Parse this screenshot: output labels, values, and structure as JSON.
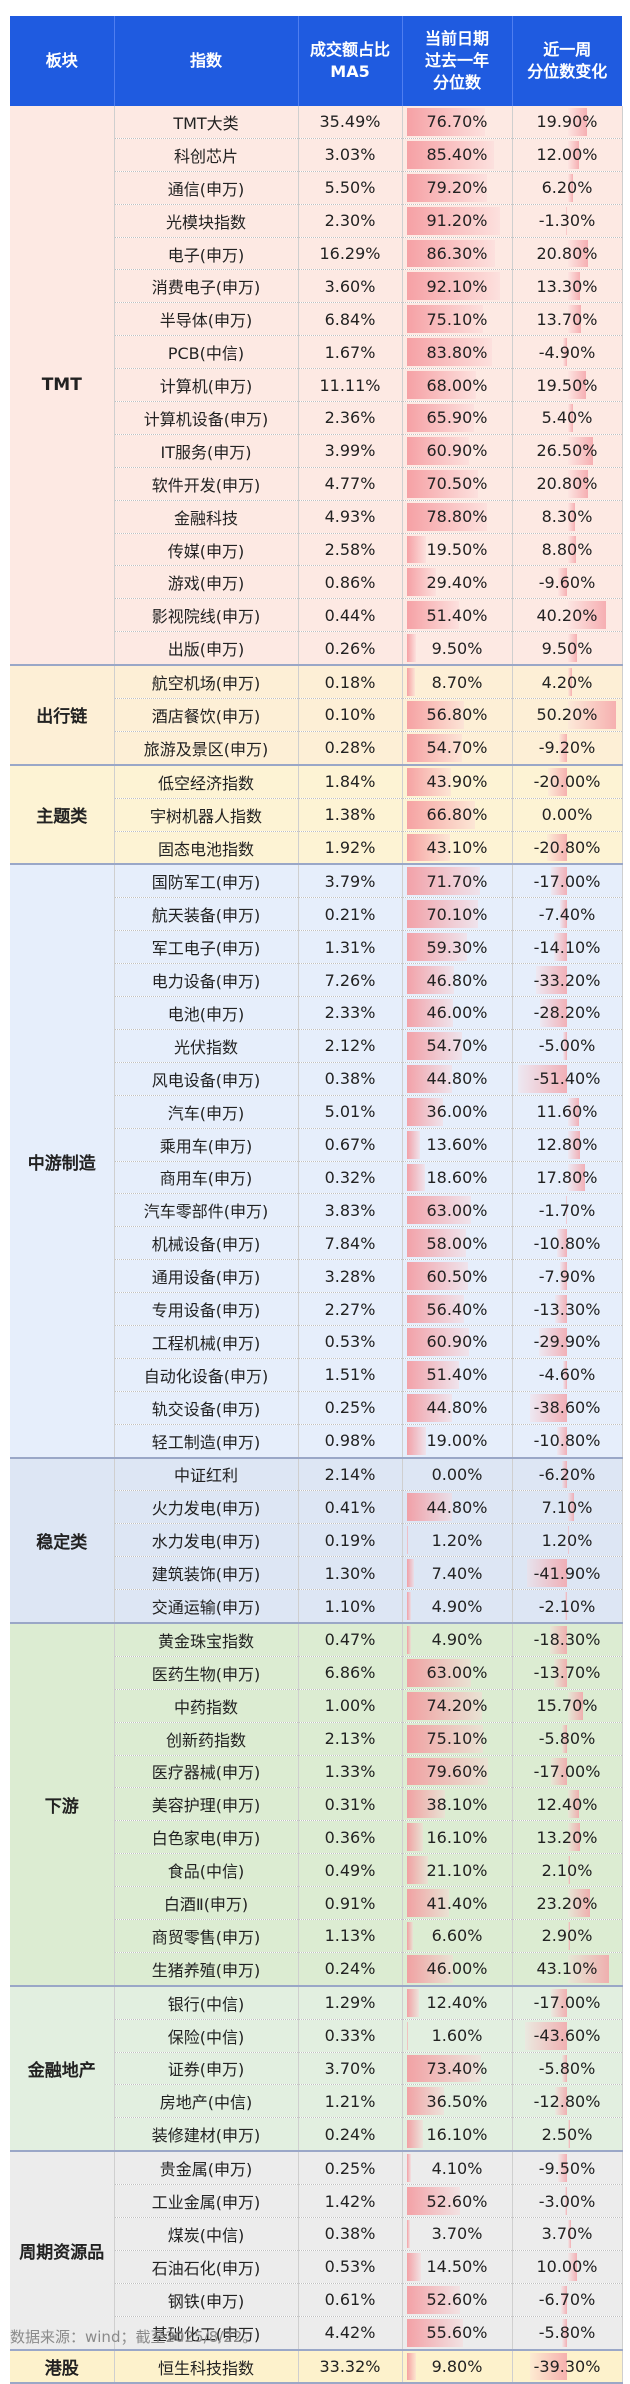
{
  "header": {
    "col_sector": "板块",
    "col_index": "指数",
    "col_turnover": "成交额占比\nMA5",
    "col_pct": "当前日期\n过去一年\n分位数",
    "col_change": "近一周\n分位数变化"
  },
  "groups": [
    {
      "sector": "TMT",
      "color": "#fde9e3",
      "rows": [
        {
          "index": "TMT大类",
          "turnover": "35.49%",
          "pct": "76.70%",
          "change": "19.90%",
          "pct_value": 76.7,
          "change_value": 19.9
        },
        {
          "index": "科创芯片",
          "turnover": "3.03%",
          "pct": "85.40%",
          "change": "12.00%",
          "pct_value": 85.4,
          "change_value": 12.0
        },
        {
          "index": "通信(申万)",
          "turnover": "5.50%",
          "pct": "79.20%",
          "change": "6.20%",
          "pct_value": 79.2,
          "change_value": 6.2
        },
        {
          "index": "光模块指数",
          "turnover": "2.30%",
          "pct": "91.20%",
          "change": "-1.30%",
          "pct_value": 91.2,
          "change_value": -1.3
        },
        {
          "index": "电子(申万)",
          "turnover": "16.29%",
          "pct": "86.30%",
          "change": "20.80%",
          "pct_value": 86.3,
          "change_value": 20.8
        },
        {
          "index": "消费电子(申万)",
          "turnover": "3.60%",
          "pct": "92.10%",
          "change": "13.30%",
          "pct_value": 92.1,
          "change_value": 13.3
        },
        {
          "index": "半导体(申万)",
          "turnover": "6.84%",
          "pct": "75.10%",
          "change": "13.70%",
          "pct_value": 75.1,
          "change_value": 13.7
        },
        {
          "index": "PCB(中信)",
          "turnover": "1.67%",
          "pct": "83.80%",
          "change": "-4.90%",
          "pct_value": 83.8,
          "change_value": -4.9
        },
        {
          "index": "计算机(申万)",
          "turnover": "11.11%",
          "pct": "68.00%",
          "change": "19.50%",
          "pct_value": 68.0,
          "change_value": 19.5
        },
        {
          "index": "计算机设备(申万)",
          "turnover": "2.36%",
          "pct": "65.90%",
          "change": "5.40%",
          "pct_value": 65.9,
          "change_value": 5.4
        },
        {
          "index": "IT服务(申万)",
          "turnover": "3.99%",
          "pct": "60.90%",
          "change": "26.50%",
          "pct_value": 60.9,
          "change_value": 26.5
        },
        {
          "index": "软件开发(申万)",
          "turnover": "4.77%",
          "pct": "70.50%",
          "change": "20.80%",
          "pct_value": 70.5,
          "change_value": 20.8
        },
        {
          "index": "金融科技",
          "turnover": "4.93%",
          "pct": "78.80%",
          "change": "8.30%",
          "pct_value": 78.8,
          "change_value": 8.3
        },
        {
          "index": "传媒(申万)",
          "turnover": "2.58%",
          "pct": "19.50%",
          "change": "8.80%",
          "pct_value": 19.5,
          "change_value": 8.8
        },
        {
          "index": "游戏(申万)",
          "turnover": "0.86%",
          "pct": "29.40%",
          "change": "-9.60%",
          "pct_value": 29.4,
          "change_value": -9.6
        },
        {
          "index": "影视院线(申万)",
          "turnover": "0.44%",
          "pct": "51.40%",
          "change": "40.20%",
          "pct_value": 51.4,
          "change_value": 40.2
        },
        {
          "index": "出版(申万)",
          "turnover": "0.26%",
          "pct": "9.50%",
          "change": "9.50%",
          "pct_value": 9.5,
          "change_value": 9.5
        }
      ]
    },
    {
      "sector": "出行链",
      "color": "#fdefd6",
      "rows": [
        {
          "index": "航空机场(申万)",
          "turnover": "0.18%",
          "pct": "8.70%",
          "change": "4.20%",
          "pct_value": 8.7,
          "change_value": 4.2
        },
        {
          "index": "酒店餐饮(申万)",
          "turnover": "0.10%",
          "pct": "56.80%",
          "change": "50.20%",
          "pct_value": 56.8,
          "change_value": 50.2
        },
        {
          "index": "旅游及景区(申万)",
          "turnover": "0.28%",
          "pct": "54.70%",
          "change": "-9.20%",
          "pct_value": 54.7,
          "change_value": -9.2
        }
      ]
    },
    {
      "sector": "主题类",
      "color": "#fdf3d4",
      "rows": [
        {
          "index": "低空经济指数",
          "turnover": "1.84%",
          "pct": "43.90%",
          "change": "-20.00%",
          "pct_value": 43.9,
          "change_value": -20.0
        },
        {
          "index": "宇树机器人指数",
          "turnover": "1.38%",
          "pct": "66.80%",
          "change": "0.00%",
          "pct_value": 66.8,
          "change_value": 0.0
        },
        {
          "index": "固态电池指数",
          "turnover": "1.92%",
          "pct": "43.10%",
          "change": "-20.80%",
          "pct_value": 43.1,
          "change_value": -20.8
        }
      ]
    },
    {
      "sector": "中游制造",
      "color": "#e6eefb",
      "rows": [
        {
          "index": "国防军工(申万)",
          "turnover": "3.79%",
          "pct": "71.70%",
          "change": "-17.00%",
          "pct_value": 71.7,
          "change_value": -17.0
        },
        {
          "index": "航天装备(申万)",
          "turnover": "0.21%",
          "pct": "70.10%",
          "change": "-7.40%",
          "pct_value": 70.1,
          "change_value": -7.4
        },
        {
          "index": "军工电子(申万)",
          "turnover": "1.31%",
          "pct": "59.30%",
          "change": "-14.10%",
          "pct_value": 59.3,
          "change_value": -14.1
        },
        {
          "index": "电力设备(申万)",
          "turnover": "7.26%",
          "pct": "46.80%",
          "change": "-33.20%",
          "pct_value": 46.8,
          "change_value": -33.2
        },
        {
          "index": "电池(申万)",
          "turnover": "2.33%",
          "pct": "46.00%",
          "change": "-28.20%",
          "pct_value": 46.0,
          "change_value": -28.2
        },
        {
          "index": "光伏指数",
          "turnover": "2.12%",
          "pct": "54.70%",
          "change": "-5.00%",
          "pct_value": 54.7,
          "change_value": -5.0
        },
        {
          "index": "风电设备(申万)",
          "turnover": "0.38%",
          "pct": "44.80%",
          "change": "-51.40%",
          "pct_value": 44.8,
          "change_value": -51.4
        },
        {
          "index": "汽车(申万)",
          "turnover": "5.01%",
          "pct": "36.00%",
          "change": "11.60%",
          "pct_value": 36.0,
          "change_value": 11.6
        },
        {
          "index": "乘用车(申万)",
          "turnover": "0.67%",
          "pct": "13.60%",
          "change": "12.80%",
          "pct_value": 13.6,
          "change_value": 12.8
        },
        {
          "index": "商用车(申万)",
          "turnover": "0.32%",
          "pct": "18.60%",
          "change": "17.80%",
          "pct_value": 18.6,
          "change_value": 17.8
        },
        {
          "index": "汽车零部件(申万)",
          "turnover": "3.83%",
          "pct": "63.00%",
          "change": "-1.70%",
          "pct_value": 63.0,
          "change_value": -1.7
        },
        {
          "index": "机械设备(申万)",
          "turnover": "7.84%",
          "pct": "58.00%",
          "change": "-10.80%",
          "pct_value": 58.0,
          "change_value": -10.8
        },
        {
          "index": "通用设备(申万)",
          "turnover": "3.28%",
          "pct": "60.50%",
          "change": "-7.90%",
          "pct_value": 60.5,
          "change_value": -7.9
        },
        {
          "index": "专用设备(申万)",
          "turnover": "2.27%",
          "pct": "56.40%",
          "change": "-13.30%",
          "pct_value": 56.4,
          "change_value": -13.3
        },
        {
          "index": "工程机械(申万)",
          "turnover": "0.53%",
          "pct": "60.90%",
          "change": "-29.90%",
          "pct_value": 60.9,
          "change_value": -29.9
        },
        {
          "index": "自动化设备(申万)",
          "turnover": "1.51%",
          "pct": "51.40%",
          "change": "-4.60%",
          "pct_value": 51.4,
          "change_value": -4.6
        },
        {
          "index": "轨交设备(申万)",
          "turnover": "0.25%",
          "pct": "44.80%",
          "change": "-38.60%",
          "pct_value": 44.8,
          "change_value": -38.6
        },
        {
          "index": "轻工制造(申万)",
          "turnover": "0.98%",
          "pct": "19.00%",
          "change": "-10.80%",
          "pct_value": 19.0,
          "change_value": -10.8
        }
      ]
    },
    {
      "sector": "稳定类",
      "color": "#dde6f4",
      "rows": [
        {
          "index": "中证红利",
          "turnover": "2.14%",
          "pct": "0.00%",
          "change": "-6.20%",
          "pct_value": 0.0,
          "change_value": -6.2
        },
        {
          "index": "火力发电(申万)",
          "turnover": "0.41%",
          "pct": "44.80%",
          "change": "7.10%",
          "pct_value": 44.8,
          "change_value": 7.1
        },
        {
          "index": "水力发电(申万)",
          "turnover": "0.19%",
          "pct": "1.20%",
          "change": "1.20%",
          "pct_value": 1.2,
          "change_value": 1.2
        },
        {
          "index": "建筑装饰(申万)",
          "turnover": "1.30%",
          "pct": "7.40%",
          "change": "-41.90%",
          "pct_value": 7.4,
          "change_value": -41.9
        },
        {
          "index": "交通运输(申万)",
          "turnover": "1.10%",
          "pct": "4.90%",
          "change": "-2.10%",
          "pct_value": 4.9,
          "change_value": -2.1
        }
      ]
    },
    {
      "sector": "下游",
      "color": "#dcecd2",
      "rows": [
        {
          "index": "黄金珠宝指数",
          "turnover": "0.47%",
          "pct": "4.90%",
          "change": "-18.30%",
          "pct_value": 4.9,
          "change_value": -18.3
        },
        {
          "index": "医药生物(申万)",
          "turnover": "6.86%",
          "pct": "63.00%",
          "change": "-13.70%",
          "pct_value": 63.0,
          "change_value": -13.7
        },
        {
          "index": "中药指数",
          "turnover": "1.00%",
          "pct": "74.20%",
          "change": "15.70%",
          "pct_value": 74.2,
          "change_value": 15.7
        },
        {
          "index": "创新药指数",
          "turnover": "2.13%",
          "pct": "75.10%",
          "change": "-5.80%",
          "pct_value": 75.1,
          "change_value": -5.8
        },
        {
          "index": "医疗器械(申万)",
          "turnover": "1.33%",
          "pct": "79.60%",
          "change": "-17.00%",
          "pct_value": 79.6,
          "change_value": -17.0
        },
        {
          "index": "美容护理(申万)",
          "turnover": "0.31%",
          "pct": "38.10%",
          "change": "12.40%",
          "pct_value": 38.1,
          "change_value": 12.4
        },
        {
          "index": "白色家电(申万)",
          "turnover": "0.36%",
          "pct": "16.10%",
          "change": "13.20%",
          "pct_value": 16.1,
          "change_value": 13.2
        },
        {
          "index": "食品(中信)",
          "turnover": "0.49%",
          "pct": "21.10%",
          "change": "2.10%",
          "pct_value": 21.1,
          "change_value": 2.1
        },
        {
          "index": "白酒Ⅱ(申万)",
          "turnover": "0.91%",
          "pct": "41.40%",
          "change": "23.20%",
          "pct_value": 41.4,
          "change_value": 23.2
        },
        {
          "index": "商贸零售(申万)",
          "turnover": "1.13%",
          "pct": "6.60%",
          "change": "2.90%",
          "pct_value": 6.6,
          "change_value": 2.9
        },
        {
          "index": "生猪养殖(申万)",
          "turnover": "0.24%",
          "pct": "46.00%",
          "change": "43.10%",
          "pct_value": 46.0,
          "change_value": 43.1
        }
      ]
    },
    {
      "sector": "金融地产",
      "color": "#e2efe0",
      "rows": [
        {
          "index": "银行(中信)",
          "turnover": "1.29%",
          "pct": "12.40%",
          "change": "-17.00%",
          "pct_value": 12.4,
          "change_value": -17.0
        },
        {
          "index": "保险(中信)",
          "turnover": "0.33%",
          "pct": "1.60%",
          "change": "-43.60%",
          "pct_value": 1.6,
          "change_value": -43.6
        },
        {
          "index": "证券(申万)",
          "turnover": "3.70%",
          "pct": "73.40%",
          "change": "-5.80%",
          "pct_value": 73.4,
          "change_value": -5.8
        },
        {
          "index": "房地产(中信)",
          "turnover": "1.21%",
          "pct": "36.50%",
          "change": "-12.80%",
          "pct_value": 36.5,
          "change_value": -12.8
        },
        {
          "index": "装修建材(申万)",
          "turnover": "0.24%",
          "pct": "16.10%",
          "change": "2.50%",
          "pct_value": 16.1,
          "change_value": 2.5
        }
      ]
    },
    {
      "sector": "周期资源品",
      "color": "#ececec",
      "rows": [
        {
          "index": "贵金属(申万)",
          "turnover": "0.25%",
          "pct": "4.10%",
          "change": "-9.50%",
          "pct_value": 4.1,
          "change_value": -9.5
        },
        {
          "index": "工业金属(申万)",
          "turnover": "1.42%",
          "pct": "52.60%",
          "change": "-3.00%",
          "pct_value": 52.6,
          "change_value": -3.0
        },
        {
          "index": "煤炭(中信)",
          "turnover": "0.38%",
          "pct": "3.70%",
          "change": "3.70%",
          "pct_value": 3.7,
          "change_value": 3.7
        },
        {
          "index": "石油石化(申万)",
          "turnover": "0.53%",
          "pct": "14.50%",
          "change": "10.00%",
          "pct_value": 14.5,
          "change_value": 10.0
        },
        {
          "index": "钢铁(申万)",
          "turnover": "0.61%",
          "pct": "52.60%",
          "change": "-6.70%",
          "pct_value": 52.6,
          "change_value": -6.7
        },
        {
          "index": "基础化工(申万)",
          "turnover": "4.42%",
          "pct": "55.60%",
          "change": "-5.80%",
          "pct_value": 55.6,
          "change_value": -5.8
        }
      ]
    },
    {
      "sector": "港股",
      "color": "#fdf2cc",
      "rows": [
        {
          "index": "恒生科技指数",
          "turnover": "33.32%",
          "pct": "9.80%",
          "change": "-39.30%",
          "pct_value": 9.8,
          "change_value": -39.3
        }
      ]
    }
  ],
  "footer": "数据来源：wind；截至2025/8/22。"
}
